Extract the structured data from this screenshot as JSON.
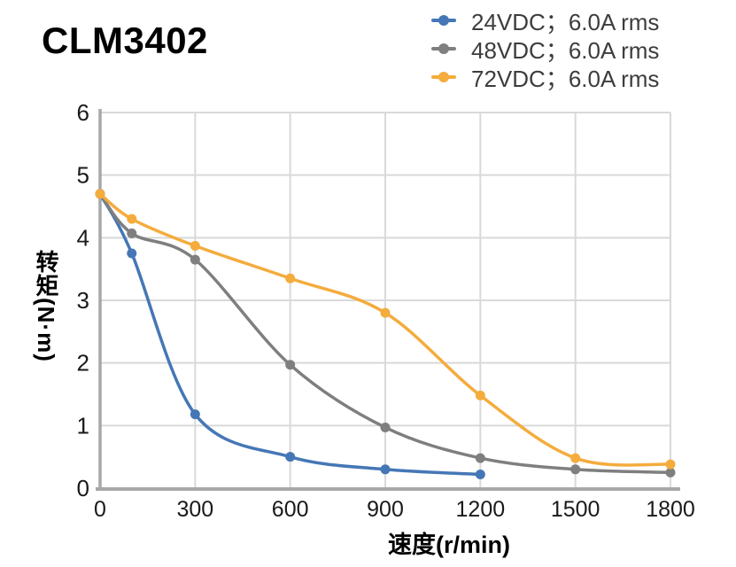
{
  "title": "CLM3402",
  "chart_data": {
    "type": "line",
    "title": "CLM3402",
    "xlabel": "速度(r/min)",
    "ylabel": "转矩(N·m)",
    "xlim": [
      0,
      1800
    ],
    "ylim": [
      0,
      6
    ],
    "x_ticks": [
      0,
      300,
      600,
      900,
      1200,
      1500,
      1800
    ],
    "y_ticks": [
      0,
      1,
      2,
      3,
      4,
      5,
      6
    ],
    "grid": true,
    "legend_position": "top-right",
    "series": [
      {
        "name": "24VDC；6.0A rms",
        "color": "#4577b6",
        "x": [
          0,
          100,
          300,
          600,
          900,
          1200
        ],
        "y": [
          4.7,
          3.75,
          1.18,
          0.5,
          0.3,
          0.22
        ]
      },
      {
        "name": "48VDC；6.0A rms",
        "color": "#7f7f7f",
        "x": [
          0,
          100,
          300,
          600,
          900,
          1200,
          1500,
          1800
        ],
        "y": [
          4.7,
          4.07,
          3.65,
          1.97,
          0.97,
          0.48,
          0.3,
          0.25
        ]
      },
      {
        "name": "72VDC；6.0A rms",
        "color": "#f4ac3d",
        "x": [
          0,
          100,
          300,
          600,
          900,
          1200,
          1500,
          1800
        ],
        "y": [
          4.7,
          4.3,
          3.87,
          3.35,
          2.8,
          1.48,
          0.48,
          0.38
        ]
      }
    ],
    "style": {
      "grid_color": "#d9d9d9",
      "axis_color": "#a8a8a8",
      "tick_text_color": "#1a1a1a",
      "line_width": 3.5,
      "marker_radius": 5.5
    }
  }
}
